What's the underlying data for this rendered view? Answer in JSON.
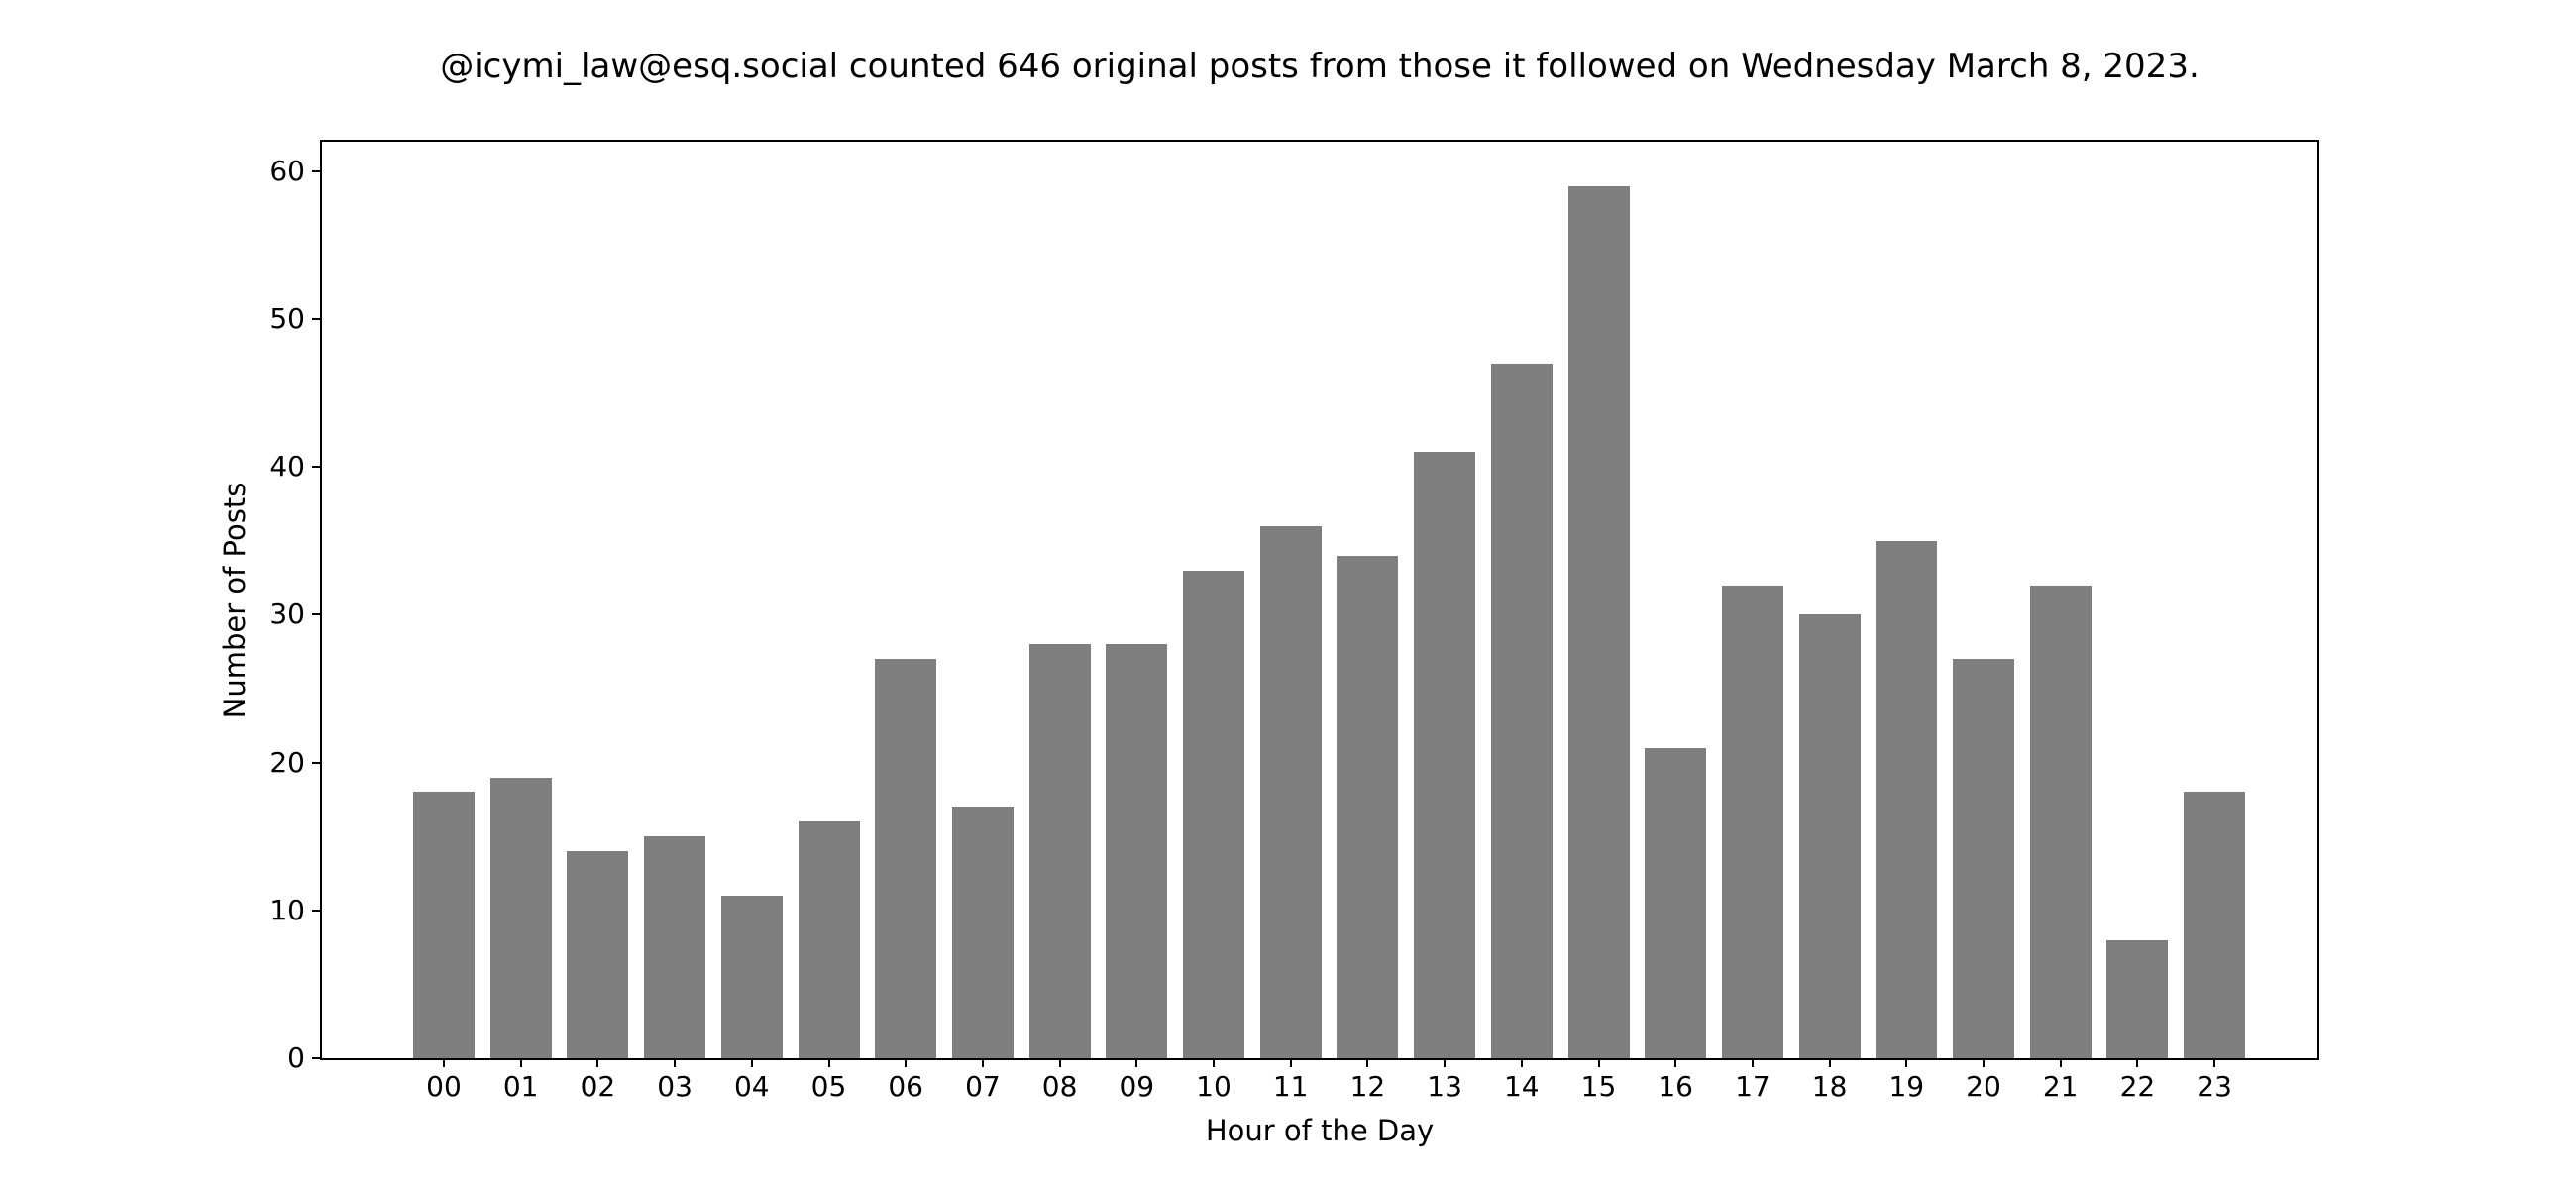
{
  "chart_data": {
    "type": "bar",
    "title": "@icymi_law@esq.social counted 646 original posts from those it followed on Wednesday March 8, 2023.",
    "categories": [
      "00",
      "01",
      "02",
      "03",
      "04",
      "05",
      "06",
      "07",
      "08",
      "09",
      "10",
      "11",
      "12",
      "13",
      "14",
      "15",
      "16",
      "17",
      "18",
      "19",
      "20",
      "21",
      "22",
      "23"
    ],
    "values": [
      18,
      19,
      14,
      15,
      11,
      16,
      27,
      17,
      28,
      28,
      33,
      36,
      34,
      41,
      47,
      59,
      21,
      32,
      30,
      35,
      27,
      32,
      8,
      18
    ],
    "xlabel": "Hour of the Day",
    "ylabel": "Number of Posts",
    "ylim": [
      0,
      62
    ],
    "yticks": [
      0,
      10,
      20,
      30,
      40,
      50,
      60
    ],
    "bar_color": "#7f7f7f",
    "background_color": "#ffffff",
    "text_color": "#000000",
    "grid": false,
    "legend": null
  }
}
